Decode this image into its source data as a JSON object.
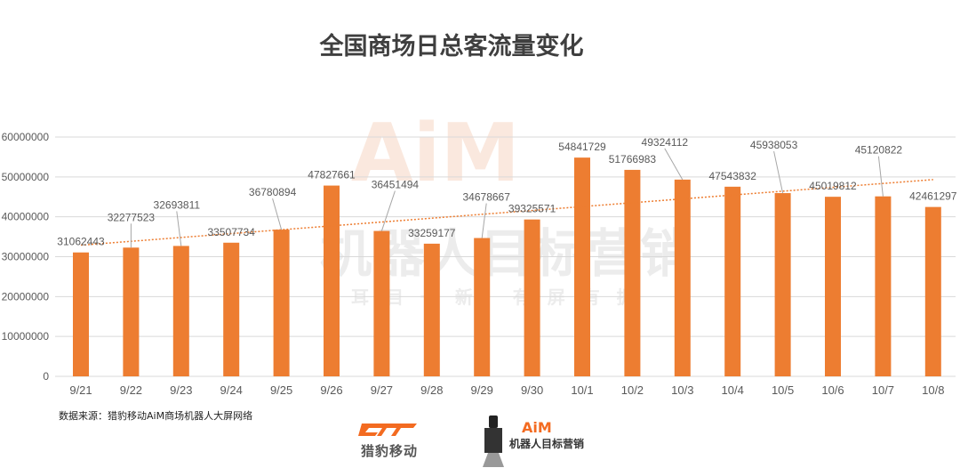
{
  "title": "全国商场日总客流量变化",
  "source": "数据来源：猎豹移动AiM商场机器人大屏网络",
  "watermark": {
    "brand": "AiM",
    "slogan": "机器人目标营销",
    "tagline": "耳 目 一 新   有 屏 有 据"
  },
  "logos": {
    "cheetah_text": "猎豹移动",
    "aim_brand": "AiM",
    "aim_slogan": "机器人目标营销"
  },
  "colors": {
    "bar": "#ed7d31",
    "trendline": "#ed7d31",
    "grid": "#d9d9d9",
    "text": "#595959"
  },
  "chart_data": {
    "type": "bar",
    "title": "全国商场日总客流量变化",
    "categories": [
      "9/21",
      "9/22",
      "9/23",
      "9/24",
      "9/25",
      "9/26",
      "9/27",
      "9/28",
      "9/29",
      "9/30",
      "10/1",
      "10/2",
      "10/3",
      "10/4",
      "10/5",
      "10/6",
      "10/7",
      "10/8"
    ],
    "values": [
      31062443,
      32277523,
      32693811,
      33507734,
      36780894,
      47827661,
      36451494,
      33259177,
      34678667,
      39325571,
      54841729,
      51766983,
      49324112,
      47543832,
      45938053,
      45019812,
      45120822,
      42461297
    ],
    "yticks": [
      0,
      10000000,
      20000000,
      30000000,
      40000000,
      50000000,
      60000000
    ],
    "ylim": [
      0,
      60000000
    ],
    "grid": true,
    "trendline": "linear, dotted",
    "data_labels": true,
    "legend": "none"
  }
}
